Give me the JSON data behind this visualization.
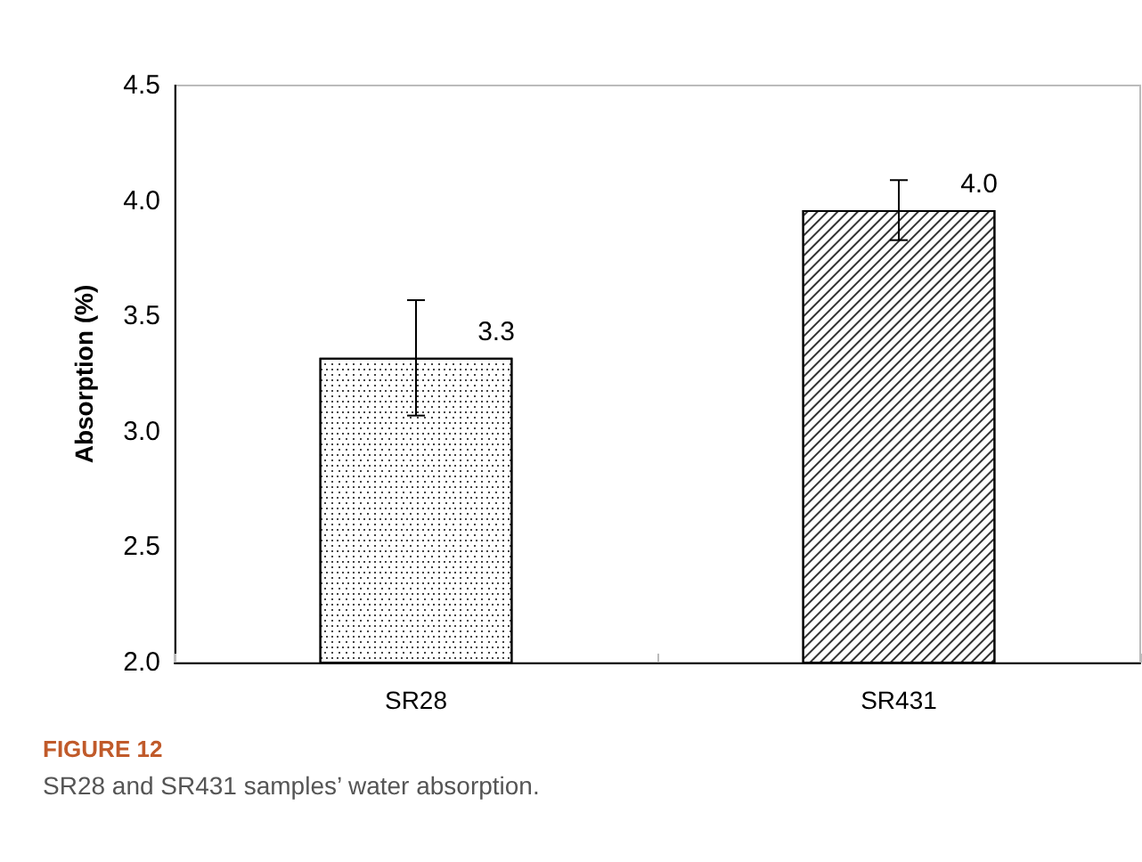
{
  "chart_data": {
    "type": "bar",
    "ylabel": "Absorption (%)",
    "categories": [
      "SR28",
      "SR431"
    ],
    "values": [
      3.32,
      3.96
    ],
    "value_labels": [
      "3.3",
      "4.0"
    ],
    "errors": [
      0.25,
      0.13
    ],
    "colors": [
      "#ffffff",
      "#ffffff"
    ],
    "ylim": [
      2.0,
      4.5
    ],
    "yticks": [
      {
        "value": 2.0,
        "label": "2.0"
      },
      {
        "value": 2.5,
        "label": "2.5"
      },
      {
        "value": 3.0,
        "label": "3.0"
      },
      {
        "value": 3.5,
        "label": "3.5"
      },
      {
        "value": 4.0,
        "label": "4.0"
      },
      {
        "value": 4.5,
        "label": "4.5"
      }
    ],
    "grid": false,
    "annotations": [
      "FIGURE 12",
      "SR28 and SR431 samples’ water absorption."
    ]
  }
}
